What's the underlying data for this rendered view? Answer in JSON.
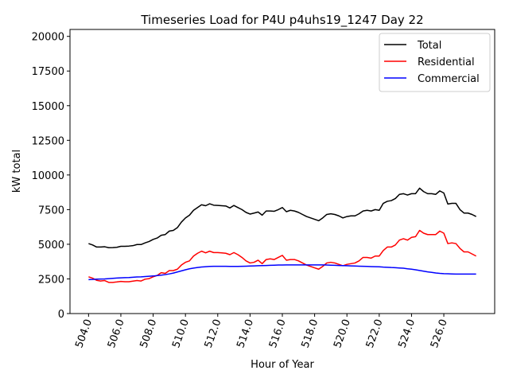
{
  "chart_data": {
    "type": "line",
    "title": "Timeseries Load for P4U p4uhs19_1247  Day 22",
    "xlabel": "Hour of Year",
    "ylabel": "kW total",
    "xlim": [
      502.85,
      529.15
    ],
    "ylim": [
      0,
      20500
    ],
    "x_ticks": [
      504,
      506,
      508,
      510,
      512,
      514,
      516,
      518,
      520,
      522,
      524,
      526
    ],
    "x_tick_labels": [
      "504.0",
      "506.0",
      "508.0",
      "510.0",
      "512.0",
      "514.0",
      "516.0",
      "518.0",
      "520.0",
      "522.0",
      "524.0",
      "526.0"
    ],
    "y_ticks": [
      0,
      2500,
      5000,
      7500,
      10000,
      12500,
      15000,
      17500,
      20000
    ],
    "y_tick_labels": [
      "0",
      "2500",
      "5000",
      "7500",
      "10000",
      "12500",
      "15000",
      "17500",
      "20000"
    ],
    "grid": false,
    "legend_position": "top-right",
    "x_start": 504,
    "x_step": 0.25,
    "series": [
      {
        "name": "Total",
        "color": "#000000",
        "values": [
          5050,
          4950,
          4800,
          4800,
          4820,
          4750,
          4760,
          4780,
          4850,
          4850,
          4870,
          4900,
          4980,
          4980,
          5100,
          5200,
          5350,
          5450,
          5650,
          5700,
          5950,
          6000,
          6200,
          6600,
          6900,
          7100,
          7450,
          7650,
          7850,
          7780,
          7920,
          7820,
          7800,
          7780,
          7760,
          7620,
          7800,
          7650,
          7500,
          7300,
          7180,
          7250,
          7330,
          7100,
          7400,
          7400,
          7380,
          7500,
          7650,
          7350,
          7450,
          7400,
          7300,
          7150,
          7000,
          6900,
          6800,
          6700,
          6900,
          7150,
          7200,
          7150,
          7050,
          6900,
          7000,
          7050,
          7050,
          7200,
          7400,
          7450,
          7400,
          7500,
          7450,
          7950,
          8100,
          8150,
          8300,
          8600,
          8650,
          8550,
          8650,
          8650,
          9050,
          8800,
          8650,
          8650,
          8600,
          8850,
          8700,
          7900,
          7950,
          7950,
          7500,
          7250,
          7250,
          7150,
          7000
        ]
      },
      {
        "name": "Residential",
        "color": "#ff0000",
        "values": [
          2650,
          2550,
          2400,
          2350,
          2380,
          2250,
          2250,
          2280,
          2320,
          2300,
          2300,
          2340,
          2380,
          2350,
          2480,
          2520,
          2650,
          2750,
          2950,
          2900,
          3100,
          3100,
          3200,
          3500,
          3700,
          3800,
          4150,
          4350,
          4500,
          4380,
          4500,
          4400,
          4400,
          4380,
          4350,
          4250,
          4400,
          4250,
          4050,
          3800,
          3650,
          3700,
          3850,
          3600,
          3900,
          3950,
          3900,
          4050,
          4200,
          3850,
          3900,
          3900,
          3800,
          3650,
          3500,
          3400,
          3300,
          3200,
          3400,
          3650,
          3700,
          3650,
          3550,
          3450,
          3550,
          3600,
          3650,
          3800,
          4050,
          4050,
          4000,
          4150,
          4150,
          4550,
          4800,
          4800,
          4950,
          5300,
          5400,
          5300,
          5500,
          5550,
          6000,
          5800,
          5700,
          5700,
          5700,
          5950,
          5800,
          5050,
          5100,
          5050,
          4700,
          4450,
          4450,
          4300,
          4150
        ]
      },
      {
        "name": "Commercial",
        "color": "#0000ff",
        "values": [
          2450,
          2460,
          2480,
          2490,
          2500,
          2520,
          2540,
          2560,
          2580,
          2590,
          2600,
          2620,
          2640,
          2650,
          2670,
          2690,
          2710,
          2740,
          2770,
          2810,
          2860,
          2920,
          3000,
          3080,
          3160,
          3230,
          3280,
          3320,
          3360,
          3380,
          3400,
          3410,
          3410,
          3410,
          3410,
          3400,
          3400,
          3400,
          3410,
          3420,
          3430,
          3440,
          3450,
          3460,
          3470,
          3480,
          3490,
          3500,
          3500,
          3510,
          3510,
          3510,
          3510,
          3510,
          3510,
          3510,
          3510,
          3510,
          3510,
          3500,
          3490,
          3480,
          3470,
          3460,
          3450,
          3440,
          3430,
          3420,
          3410,
          3400,
          3390,
          3380,
          3370,
          3350,
          3340,
          3320,
          3310,
          3290,
          3270,
          3230,
          3200,
          3160,
          3110,
          3060,
          3010,
          2970,
          2930,
          2900,
          2880,
          2870,
          2860,
          2850,
          2850,
          2850,
          2850,
          2850,
          2850
        ]
      }
    ]
  }
}
